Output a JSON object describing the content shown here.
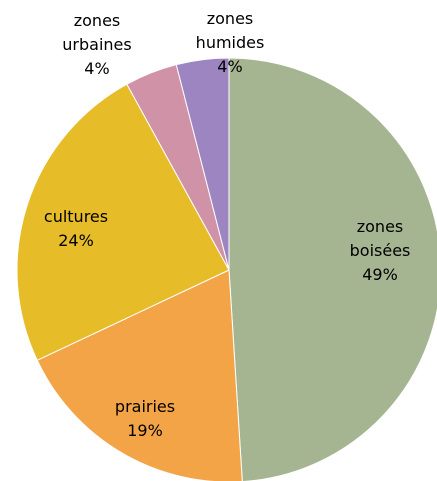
{
  "chart_data": {
    "type": "pie",
    "title": "",
    "slices": [
      {
        "label_lines": [
          "zones",
          "boisées"
        ],
        "value": 49,
        "value_label": "49%",
        "color": "#a5b592"
      },
      {
        "label_lines": [
          "prairies"
        ],
        "value": 19,
        "value_label": "19%",
        "color": "#f3a447"
      },
      {
        "label_lines": [
          "cultures"
        ],
        "value": 24,
        "value_label": "24%",
        "color": "#e7bc29"
      },
      {
        "label_lines": [
          "zones",
          "urbaines"
        ],
        "value": 4,
        "value_label": "4%",
        "color": "#d092a7"
      },
      {
        "label_lines": [
          "zones",
          "humides"
        ],
        "value": 4,
        "value_label": "4%",
        "color": "#9c85c0"
      }
    ]
  }
}
